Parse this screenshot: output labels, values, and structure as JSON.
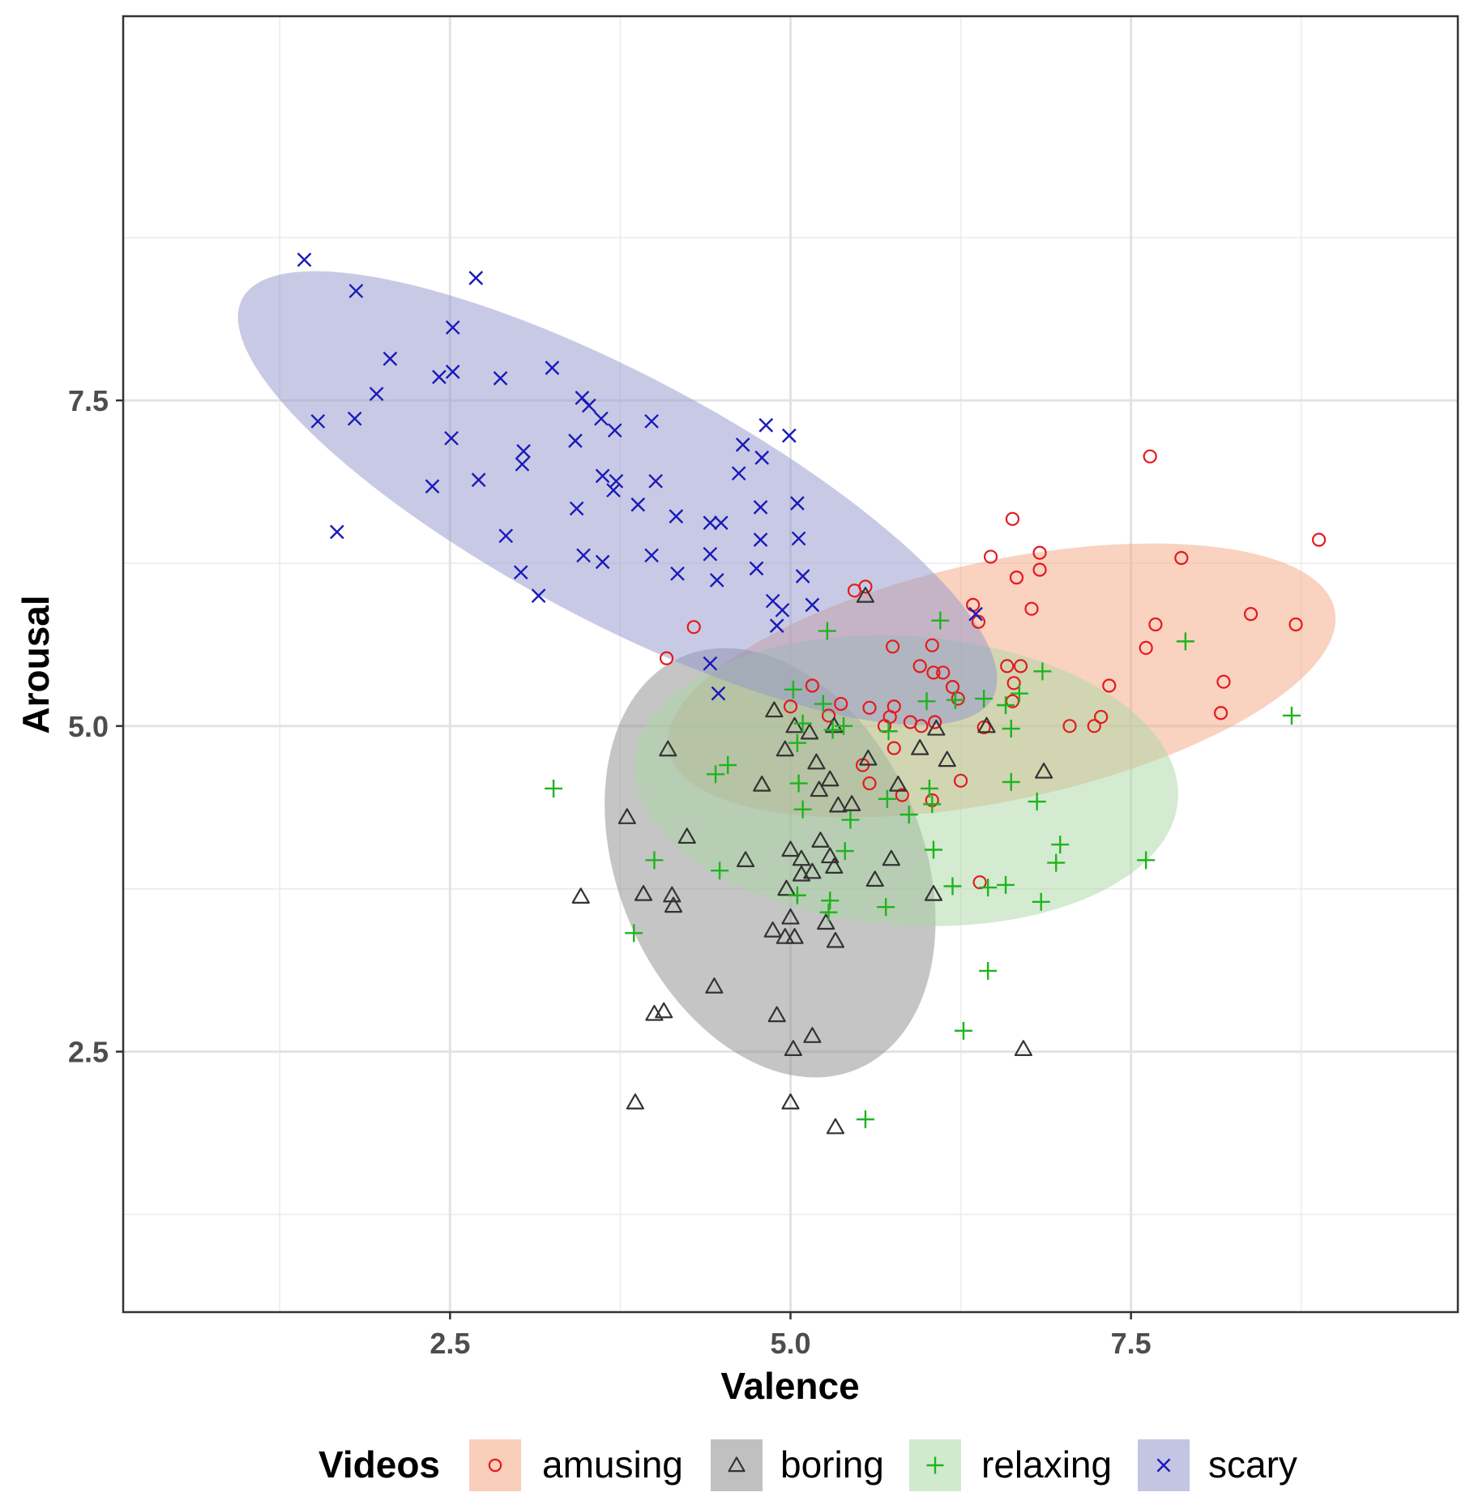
{
  "chart_data": {
    "type": "scatter",
    "title": "",
    "xlabel": "Valence",
    "ylabel": "Arousal",
    "xlim": [
      0.1,
      9.9
    ],
    "ylim": [
      0.5,
      10.45
    ],
    "x_ticks": [
      2.5,
      5.0,
      7.5
    ],
    "x_tick_labels": [
      "2.5",
      "5.0",
      "7.5"
    ],
    "y_ticks": [
      2.5,
      5.0,
      7.5
    ],
    "y_tick_labels": [
      "2.5",
      "5.0",
      "7.5"
    ],
    "x_minor_ticks": [
      1.25,
      3.75,
      6.25,
      8.75
    ],
    "y_minor_ticks": [
      1.25,
      3.75,
      6.25,
      8.75
    ],
    "grid": true,
    "legend": {
      "title": "Videos",
      "position": "bottom",
      "entries": [
        "amusing",
        "boring",
        "relaxing",
        "scary"
      ]
    },
    "series": [
      {
        "name": "amusing",
        "marker": "circle",
        "color": "#e41a1c",
        "fill": "#f4a582",
        "ellipse": {
          "cx": 6.55,
          "cy": 5.35,
          "rx": 2.5,
          "ry": 0.92,
          "angle_deg": 12
        },
        "points": [
          [
            7.64,
            7.07
          ],
          [
            8.88,
            6.43
          ],
          [
            6.63,
            6.59
          ],
          [
            7.87,
            6.29
          ],
          [
            6.47,
            6.3
          ],
          [
            6.83,
            6.33
          ],
          [
            6.66,
            6.14
          ],
          [
            6.83,
            6.2
          ],
          [
            5.47,
            6.04
          ],
          [
            5.55,
            6.07
          ],
          [
            6.34,
            5.93
          ],
          [
            6.77,
            5.9
          ],
          [
            6.38,
            5.8
          ],
          [
            8.38,
            5.86
          ],
          [
            8.71,
            5.78
          ],
          [
            7.68,
            5.78
          ],
          [
            7.61,
            5.6
          ],
          [
            4.29,
            5.76
          ],
          [
            4.09,
            5.52
          ],
          [
            5.75,
            5.61
          ],
          [
            6.04,
            5.62
          ],
          [
            5.95,
            5.46
          ],
          [
            6.59,
            5.46
          ],
          [
            6.69,
            5.46
          ],
          [
            6.05,
            5.41
          ],
          [
            6.12,
            5.41
          ],
          [
            6.19,
            5.3
          ],
          [
            5.16,
            5.31
          ],
          [
            6.23,
            5.21
          ],
          [
            6.64,
            5.33
          ],
          [
            6.63,
            5.19
          ],
          [
            7.34,
            5.31
          ],
          [
            8.18,
            5.34
          ],
          [
            8.16,
            5.1
          ],
          [
            5.37,
            5.17
          ],
          [
            5.76,
            5.15
          ],
          [
            5.58,
            5.14
          ],
          [
            5.0,
            5.15
          ],
          [
            5.28,
            5.08
          ],
          [
            5.73,
            5.07
          ],
          [
            5.88,
            5.03
          ],
          [
            5.69,
            5.0
          ],
          [
            5.96,
            5.0
          ],
          [
            6.06,
            5.03
          ],
          [
            6.42,
            4.99
          ],
          [
            7.05,
            5.0
          ],
          [
            7.28,
            5.07
          ],
          [
            7.23,
            5.0
          ],
          [
            5.53,
            4.7
          ],
          [
            5.58,
            4.56
          ],
          [
            5.76,
            4.83
          ],
          [
            5.82,
            4.47
          ],
          [
            6.04,
            4.43
          ],
          [
            6.25,
            4.58
          ],
          [
            6.39,
            3.8
          ]
        ]
      },
      {
        "name": "boring",
        "marker": "triangle",
        "color": "#333333",
        "fill": "#8c8c8c",
        "ellipse": {
          "cx": 4.85,
          "cy": 3.95,
          "rx": 1.12,
          "ry": 1.72,
          "angle_deg": 23
        },
        "points": [
          [
            5.55,
            6.0
          ],
          [
            4.1,
            4.82
          ],
          [
            3.8,
            4.3
          ],
          [
            4.24,
            4.15
          ],
          [
            4.13,
            3.7
          ],
          [
            4.14,
            3.62
          ],
          [
            3.92,
            3.71
          ],
          [
            3.46,
            3.69
          ],
          [
            4.67,
            3.97
          ],
          [
            4.79,
            4.55
          ],
          [
            4.88,
            5.12
          ],
          [
            4.96,
            4.82
          ],
          [
            5.03,
            5.0
          ],
          [
            5.14,
            4.95
          ],
          [
            5.19,
            4.72
          ],
          [
            5.21,
            4.51
          ],
          [
            5.29,
            4.59
          ],
          [
            5.35,
            4.39
          ],
          [
            5.32,
            5.0
          ],
          [
            5.45,
            4.4
          ],
          [
            5.57,
            4.75
          ],
          [
            5.79,
            4.55
          ],
          [
            5.95,
            4.83
          ],
          [
            6.07,
            4.98
          ],
          [
            6.15,
            4.74
          ],
          [
            6.44,
            5.0
          ],
          [
            6.86,
            4.65
          ],
          [
            5.0,
            4.05
          ],
          [
            5.08,
            3.98
          ],
          [
            5.22,
            4.12
          ],
          [
            5.16,
            3.88
          ],
          [
            5.32,
            3.92
          ],
          [
            5.62,
            3.82
          ],
          [
            5.74,
            3.98
          ],
          [
            5.29,
            4.0
          ],
          [
            4.97,
            3.75
          ],
          [
            5.08,
            3.86
          ],
          [
            5.0,
            3.53
          ],
          [
            5.03,
            3.38
          ],
          [
            4.96,
            3.38
          ],
          [
            4.87,
            3.43
          ],
          [
            5.26,
            3.49
          ],
          [
            5.33,
            3.35
          ],
          [
            6.05,
            3.71
          ],
          [
            4.44,
            3.0
          ],
          [
            4.07,
            2.81
          ],
          [
            4.0,
            2.79
          ],
          [
            4.9,
            2.78
          ],
          [
            5.02,
            2.52
          ],
          [
            5.16,
            2.62
          ],
          [
            3.86,
            2.11
          ],
          [
            5.0,
            2.11
          ],
          [
            5.33,
            1.92
          ],
          [
            6.71,
            2.52
          ]
        ]
      },
      {
        "name": "relaxing",
        "marker": "plus",
        "color": "#1eb41e",
        "fill": "#a9d8a4",
        "ellipse": {
          "cx": 5.85,
          "cy": 4.58,
          "rx": 2.0,
          "ry": 1.11,
          "angle_deg": -4
        },
        "points": [
          [
            5.27,
            5.73
          ],
          [
            6.1,
            5.81
          ],
          [
            7.9,
            5.65
          ],
          [
            8.68,
            5.08
          ],
          [
            6.85,
            5.42
          ],
          [
            6.42,
            5.21
          ],
          [
            6.58,
            5.16
          ],
          [
            6.68,
            5.25
          ],
          [
            6.62,
            4.98
          ],
          [
            6.0,
            5.19
          ],
          [
            5.02,
            5.28
          ],
          [
            5.24,
            5.17
          ],
          [
            5.09,
            5.02
          ],
          [
            5.05,
            4.87
          ],
          [
            5.39,
            5.0
          ],
          [
            5.31,
            4.97
          ],
          [
            5.72,
            4.96
          ],
          [
            5.71,
            4.44
          ],
          [
            5.87,
            4.32
          ],
          [
            6.02,
            4.52
          ],
          [
            6.04,
            4.4
          ],
          [
            6.21,
            5.2
          ],
          [
            6.62,
            4.57
          ],
          [
            6.81,
            4.42
          ],
          [
            6.98,
            4.09
          ],
          [
            6.95,
            3.95
          ],
          [
            7.61,
            3.97
          ],
          [
            6.05,
            4.05
          ],
          [
            5.06,
            4.56
          ],
          [
            5.09,
            4.36
          ],
          [
            5.44,
            4.28
          ],
          [
            5.4,
            4.04
          ],
          [
            5.29,
            3.66
          ],
          [
            5.28,
            3.57
          ],
          [
            5.7,
            3.61
          ],
          [
            5.05,
            3.7
          ],
          [
            6.19,
            3.77
          ],
          [
            6.45,
            3.76
          ],
          [
            6.58,
            3.78
          ],
          [
            6.84,
            3.65
          ],
          [
            4.45,
            4.63
          ],
          [
            4.54,
            4.7
          ],
          [
            4.0,
            3.97
          ],
          [
            4.48,
            3.89
          ],
          [
            3.26,
            4.52
          ],
          [
            3.85,
            3.41
          ],
          [
            6.45,
            3.12
          ],
          [
            6.27,
            2.66
          ],
          [
            5.55,
            1.98
          ]
        ]
      },
      {
        "name": "scary",
        "marker": "cross",
        "color": "#1a1aba",
        "fill": "#9196cc",
        "ellipse": {
          "cx": 3.73,
          "cy": 6.75,
          "rx": 3.12,
          "ry": 0.94,
          "angle_deg": -28
        },
        "points": [
          [
            1.43,
            8.58
          ],
          [
            2.69,
            8.44
          ],
          [
            1.81,
            8.34
          ],
          [
            2.52,
            8.06
          ],
          [
            2.06,
            7.82
          ],
          [
            1.96,
            7.55
          ],
          [
            1.53,
            7.34
          ],
          [
            1.8,
            7.36
          ],
          [
            2.42,
            7.68
          ],
          [
            2.52,
            7.72
          ],
          [
            2.87,
            7.67
          ],
          [
            3.25,
            7.75
          ],
          [
            3.47,
            7.52
          ],
          [
            3.52,
            7.46
          ],
          [
            3.61,
            7.36
          ],
          [
            3.71,
            7.27
          ],
          [
            3.98,
            7.34
          ],
          [
            3.42,
            7.19
          ],
          [
            2.51,
            7.21
          ],
          [
            2.37,
            6.84
          ],
          [
            2.71,
            6.89
          ],
          [
            3.04,
            7.11
          ],
          [
            3.03,
            7.01
          ],
          [
            3.43,
            6.67
          ],
          [
            3.62,
            6.92
          ],
          [
            3.7,
            6.81
          ],
          [
            3.72,
            6.88
          ],
          [
            3.88,
            6.7
          ],
          [
            4.01,
            6.88
          ],
          [
            4.16,
            6.61
          ],
          [
            4.41,
            6.56
          ],
          [
            4.49,
            6.56
          ],
          [
            4.62,
            6.94
          ],
          [
            4.65,
            7.16
          ],
          [
            4.82,
            7.31
          ],
          [
            4.79,
            7.06
          ],
          [
            4.99,
            7.23
          ],
          [
            1.67,
            6.49
          ],
          [
            2.91,
            6.46
          ],
          [
            3.02,
            6.18
          ],
          [
            3.15,
            6.0
          ],
          [
            3.48,
            6.31
          ],
          [
            3.62,
            6.26
          ],
          [
            3.98,
            6.31
          ],
          [
            4.17,
            6.17
          ],
          [
            4.41,
            6.32
          ],
          [
            4.46,
            6.12
          ],
          [
            4.75,
            6.21
          ],
          [
            4.78,
            6.68
          ],
          [
            4.78,
            6.43
          ],
          [
            5.05,
            6.71
          ],
          [
            5.06,
            6.44
          ],
          [
            5.09,
            6.15
          ],
          [
            4.87,
            5.96
          ],
          [
            4.94,
            5.89
          ],
          [
            4.9,
            5.77
          ],
          [
            5.16,
            5.93
          ],
          [
            4.41,
            5.48
          ],
          [
            4.47,
            5.25
          ],
          [
            6.36,
            5.86
          ]
        ]
      }
    ]
  }
}
